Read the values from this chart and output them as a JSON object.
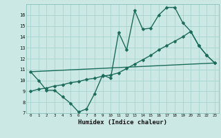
{
  "xlabel": "Humidex (Indice chaleur)",
  "background_color": "#cce8e4",
  "grid_color": "#a8d4cf",
  "line_color": "#1a6b5a",
  "xlim": [
    -0.5,
    23.5
  ],
  "ylim": [
    7,
    17
  ],
  "xticks": [
    0,
    1,
    2,
    3,
    4,
    5,
    6,
    7,
    8,
    9,
    10,
    11,
    12,
    13,
    14,
    15,
    16,
    17,
    18,
    19,
    20,
    21,
    22,
    23
  ],
  "yticks": [
    7,
    8,
    9,
    10,
    11,
    12,
    13,
    14,
    15,
    16
  ],
  "line1_x": [
    0,
    1,
    2,
    3,
    4,
    5,
    6,
    7,
    8,
    9,
    10,
    11,
    12,
    13,
    14,
    15,
    16,
    17,
    18,
    19,
    20,
    21,
    22,
    23
  ],
  "line1_y": [
    10.8,
    10.0,
    9.1,
    9.1,
    8.5,
    7.9,
    7.1,
    7.4,
    8.8,
    10.5,
    10.2,
    14.4,
    12.8,
    16.4,
    14.7,
    14.8,
    16.0,
    16.7,
    16.7,
    15.3,
    14.5,
    13.2,
    12.3,
    11.6
  ],
  "line2_x": [
    0,
    23
  ],
  "line2_y": [
    10.8,
    11.6
  ],
  "line3_x": [
    0,
    1,
    2,
    3,
    4,
    5,
    6,
    7,
    8,
    9,
    10,
    11,
    12,
    13,
    14,
    15,
    16,
    17,
    18,
    19,
    20,
    21,
    22,
    23
  ],
  "line3_y": [
    9.0,
    9.2,
    9.3,
    9.5,
    9.6,
    9.8,
    9.9,
    10.1,
    10.2,
    10.4,
    10.5,
    10.7,
    11.1,
    11.5,
    11.9,
    12.3,
    12.8,
    13.2,
    13.6,
    14.0,
    14.5,
    13.2,
    12.3,
    11.6
  ],
  "marker_size": 2.5,
  "line_width": 1.0
}
